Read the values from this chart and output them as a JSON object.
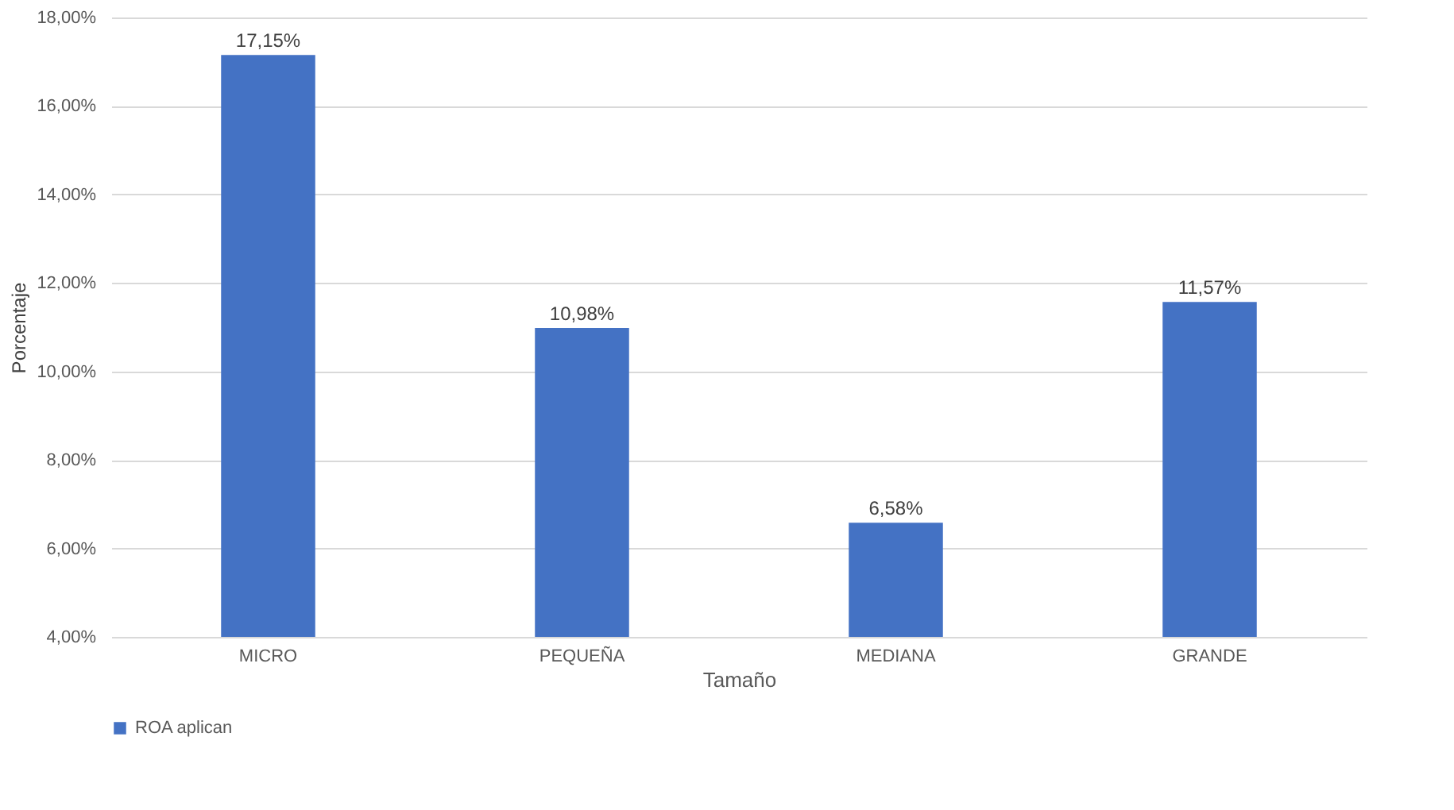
{
  "chart_data": {
    "type": "bar",
    "xlabel": "Tamaño",
    "ylabel": "Porcentaje",
    "categories": [
      "MICRO",
      "PEQUEÑA",
      "MEDIANA",
      "GRANDE"
    ],
    "series": [
      {
        "name": "ROA aplican",
        "color": "#4472c4",
        "values": [
          17.15,
          10.98,
          6.58,
          11.57
        ],
        "value_labels": [
          "17,15%",
          "10,98%",
          "6,58%",
          "11,57%"
        ]
      }
    ],
    "ylim": [
      4,
      18
    ],
    "yticks": [
      {
        "value": 4,
        "label": "4,00%"
      },
      {
        "value": 6,
        "label": "6,00%"
      },
      {
        "value": 8,
        "label": "8,00%"
      },
      {
        "value": 10,
        "label": "10,00%"
      },
      {
        "value": 12,
        "label": "12,00%"
      },
      {
        "value": 14,
        "label": "14,00%"
      },
      {
        "value": 16,
        "label": "16,00%"
      },
      {
        "value": 18,
        "label": "18,00%"
      }
    ],
    "grid": "y",
    "legend": "bottom"
  }
}
